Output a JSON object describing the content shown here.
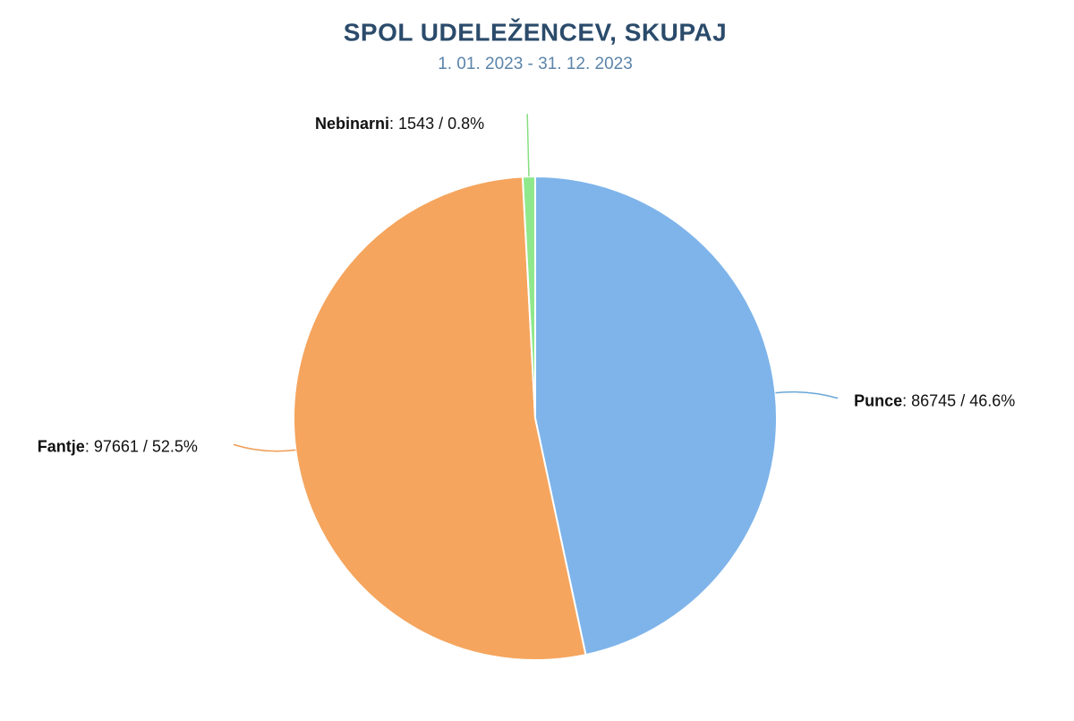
{
  "chart_data": {
    "type": "pie",
    "title": "SPOL UDELEŽENCEV, SKUPAJ",
    "subtitle": "1. 01. 2023 - 31. 12. 2023",
    "categories": [
      "Punce",
      "Fantje",
      "Nebinarni"
    ],
    "values": [
      86745,
      97661,
      1543
    ],
    "value_labels": [
      ": 86745 / 46.6%",
      ": 97661 / 52.5%",
      ": 1543 / 0.8%"
    ],
    "colors": [
      "#7eb4ea",
      "#f5a55e",
      "#90e88c"
    ],
    "line_colors": [
      "#6aa6d6",
      "#ee9d55",
      "#86de82"
    ]
  }
}
